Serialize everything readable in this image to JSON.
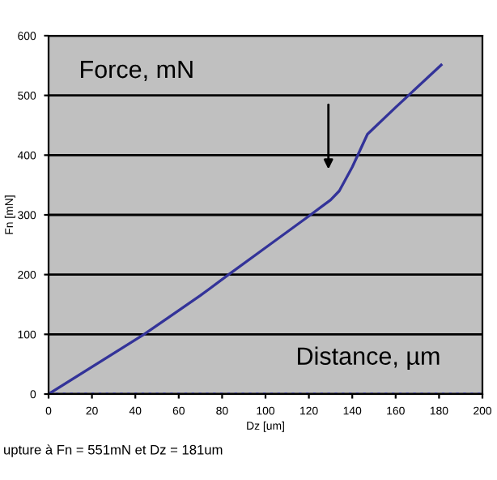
{
  "chart_data": {
    "type": "line",
    "xlabel": "Dz [um]",
    "ylabel": "Fn [mN]",
    "xlim": [
      0,
      200
    ],
    "xticks": [
      0,
      20,
      40,
      60,
      80,
      100,
      120,
      140,
      160,
      180,
      200
    ],
    "ylim": [
      0,
      600
    ],
    "yticks": [
      0,
      100,
      200,
      300,
      400,
      500,
      600
    ],
    "grid": "y",
    "legend": false,
    "marker": "none",
    "series": [
      {
        "color": "#333399",
        "x": [
          0,
          44,
          60,
          70,
          83,
          100,
          120,
          130,
          134,
          140,
          147,
          160,
          181
        ],
        "values": [
          0,
          100,
          140,
          165,
          200,
          245,
          298,
          325,
          340,
          380,
          435,
          480,
          551
        ]
      },
      {
        "color": "#333399",
        "line_style": "dotted",
        "x": [
          0,
          200
        ],
        "values": [
          0,
          0
        ]
      }
    ],
    "annotations": [
      "Force, mN",
      "Distance, µm",
      "upture à Fn = 551mN et Dz = 181um"
    ]
  }
}
